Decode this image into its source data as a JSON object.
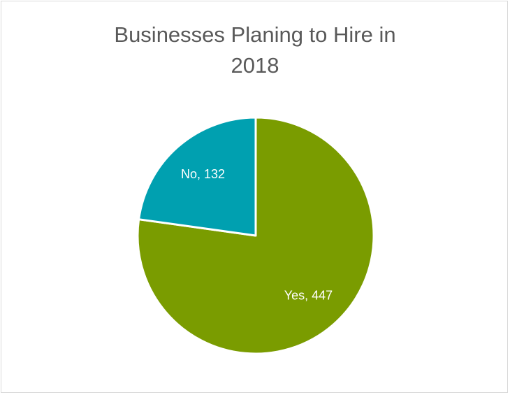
{
  "chart_data": {
    "type": "pie",
    "title_lines": [
      "Businesses Planing to Hire in",
      "2018"
    ],
    "title": "Businesses Planing to Hire in 2018",
    "categories": [
      "Yes",
      "No"
    ],
    "values": [
      447,
      132
    ],
    "labels": [
      "Yes, 447",
      "No, 132"
    ],
    "colors": [
      "#7a9c00",
      "#00a0b0"
    ],
    "start_angle_deg": 0,
    "direction": "clockwise",
    "legend": "none"
  }
}
